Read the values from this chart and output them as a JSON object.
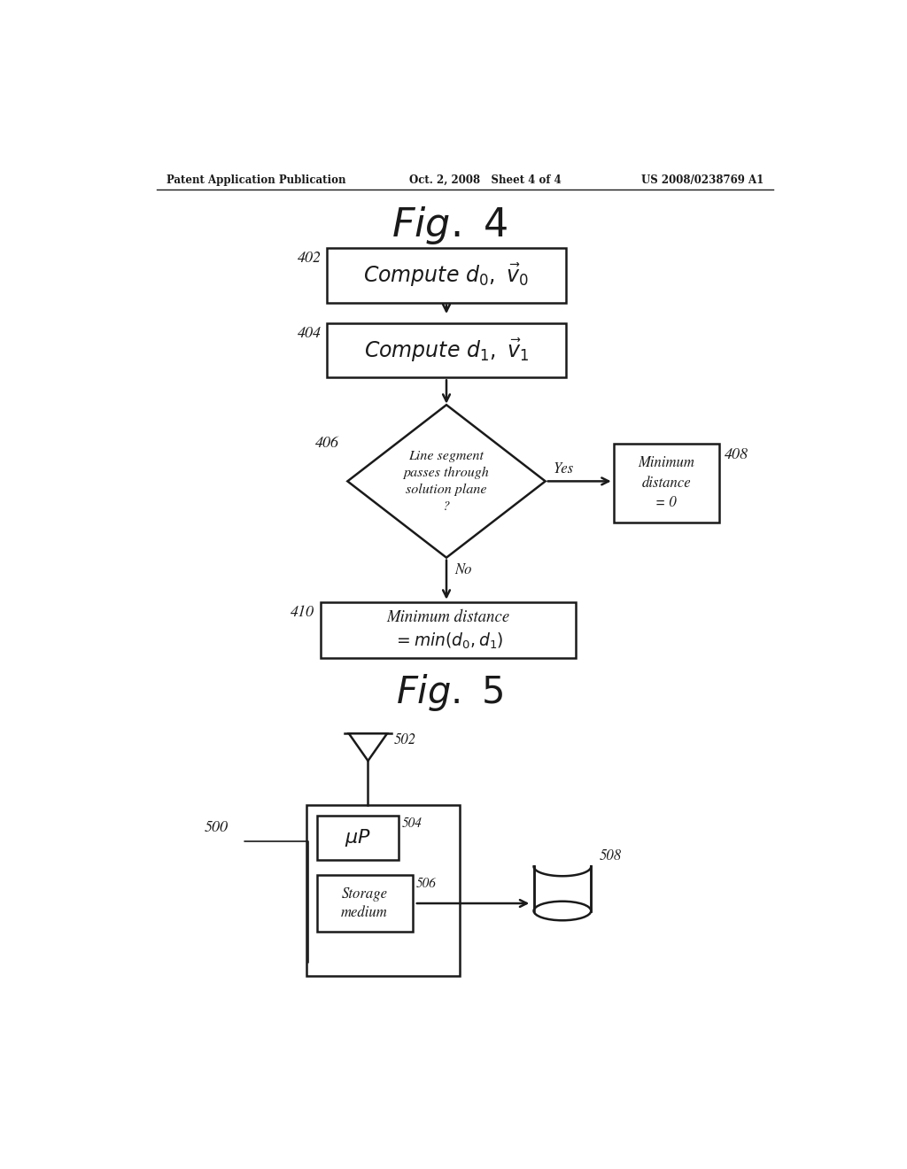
{
  "bg_color": "#f5f5f0",
  "text_color": "#1a1a1a",
  "line_color": "#1a1a1a",
  "header_left": "Patent Application Publication",
  "header_mid": "Oct. 2, 2008   Sheet 4 of 4",
  "header_right": "US 2008/0238769 A1",
  "fig4_title": "Fig. 4",
  "fig5_title": "Fig. 5",
  "label_402": "402",
  "label_404": "404",
  "label_406": "406",
  "label_408": "408",
  "label_410": "410",
  "label_500": "500",
  "label_502": "502",
  "label_504": "504",
  "label_506": "506",
  "label_508": "508",
  "yes_label": "Yes",
  "no_label": "No"
}
